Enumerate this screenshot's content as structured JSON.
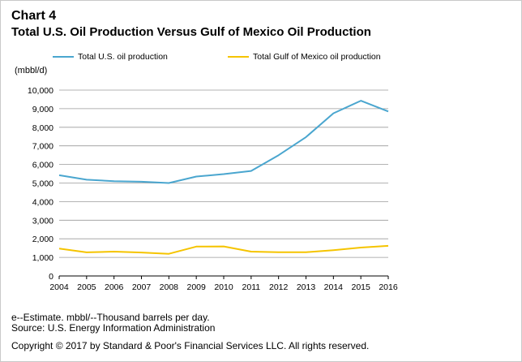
{
  "header": {
    "chart_number": "Chart 4",
    "title": "Total U.S. Oil Production Versus Gulf of Mexico Oil Production"
  },
  "notes": {
    "estimate": "e--Estimate. mbbl/--Thousand barrels per day.",
    "source": "Source: U.S. Energy Information Administration",
    "copyright": "Copyright © 2017 by Standard & Poor's Financial Services LLC. All rights reserved."
  },
  "chart_data": {
    "type": "line",
    "title": "Total U.S. Oil Production Versus Gulf of Mexico Oil Production",
    "ylabel": "(mbbl/d)",
    "xlabel": "",
    "x": [
      "2004",
      "2005",
      "2006",
      "2007",
      "2008",
      "2009",
      "2010",
      "2011",
      "2012",
      "2013",
      "2014",
      "2015",
      "2016"
    ],
    "ylim": [
      0,
      10000
    ],
    "yticks": [
      0,
      1000,
      2000,
      3000,
      4000,
      5000,
      6000,
      7000,
      8000,
      9000,
      10000
    ],
    "ytick_labels": [
      "0",
      "1,000",
      "2,000",
      "3,000",
      "4,000",
      "5,000",
      "6,000",
      "7,000",
      "8,000",
      "9,000",
      "10,000"
    ],
    "grid": true,
    "legend_position": "top",
    "series": [
      {
        "name": "Total U.S. oil production",
        "color": "#4aa6cf",
        "values": [
          5420,
          5180,
          5100,
          5070,
          5000,
          5350,
          5480,
          5650,
          6500,
          7470,
          8750,
          9430,
          8850
        ]
      },
      {
        "name": "Total Gulf of Mexico oil production",
        "color": "#f5c400",
        "values": [
          1470,
          1270,
          1310,
          1260,
          1190,
          1580,
          1590,
          1310,
          1280,
          1280,
          1390,
          1530,
          1620
        ]
      }
    ]
  }
}
